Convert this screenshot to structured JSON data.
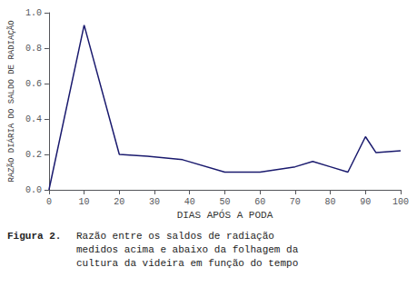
{
  "chart_data": {
    "type": "line",
    "x": [
      0,
      10,
      20,
      28,
      38,
      50,
      60,
      70,
      75,
      80,
      85,
      90,
      93,
      100
    ],
    "values": [
      0.0,
      0.93,
      0.2,
      0.19,
      0.17,
      0.1,
      0.1,
      0.13,
      0.16,
      0.13,
      0.1,
      0.3,
      0.21,
      0.22
    ],
    "color": "#1a1a6e",
    "xlabel": "DIAS APÓS A PODA",
    "ylabel": "RAZÃO DIÁRIA DO SALDO DE RADIAÇÃO",
    "xlim": [
      0,
      100
    ],
    "ylim": [
      0,
      1.0
    ],
    "xticks": [
      0,
      10,
      20,
      30,
      40,
      50,
      60,
      70,
      80,
      90,
      100
    ],
    "yticks": [
      {
        "value": 0,
        "label": "0.0"
      },
      0.2,
      0.4,
      0.6,
      0.8,
      {
        "value": 1.0,
        "label": "1.0"
      }
    ],
    "grid": false,
    "annotations": [
      "Figura 2.",
      "Razão entre os saldos de radiação\nmedidos acima e abaixo da folhagem da\ncultura da videira em função do tempo"
    ]
  }
}
